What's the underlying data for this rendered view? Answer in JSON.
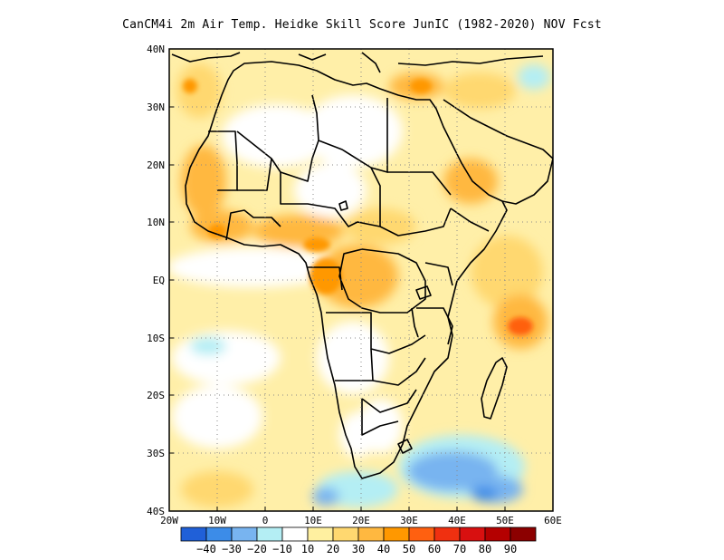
{
  "title": "CanCM4i  2m Air Temp. Heidke Skill Score JunIC (1982-2020) NOV Fcst",
  "map": {
    "lon_range": [
      -20,
      60
    ],
    "lat_range": [
      -40,
      40
    ],
    "lat_ticks": [
      "40N",
      "30N",
      "20N",
      "10N",
      "EQ",
      "10S",
      "20S",
      "30S",
      "40S"
    ],
    "lon_ticks": [
      "20W",
      "10W",
      "0",
      "10E",
      "20E",
      "30E",
      "40E",
      "50E",
      "60E"
    ],
    "gridlines": "dotted"
  },
  "colorbar": {
    "colors": [
      "#2060d8",
      "#3c8ce8",
      "#78b4f0",
      "#b4eef4",
      "#ffffff",
      "#fff0a0",
      "#ffd870",
      "#ffb840",
      "#ff9800",
      "#ff6010",
      "#f03010",
      "#d81010",
      "#b40000",
      "#8c0000"
    ],
    "labels": [
      "-40",
      "-30",
      "-20",
      "-10",
      "10",
      "20",
      "30",
      "40",
      "50",
      "60",
      "70",
      "80",
      "90"
    ]
  }
}
